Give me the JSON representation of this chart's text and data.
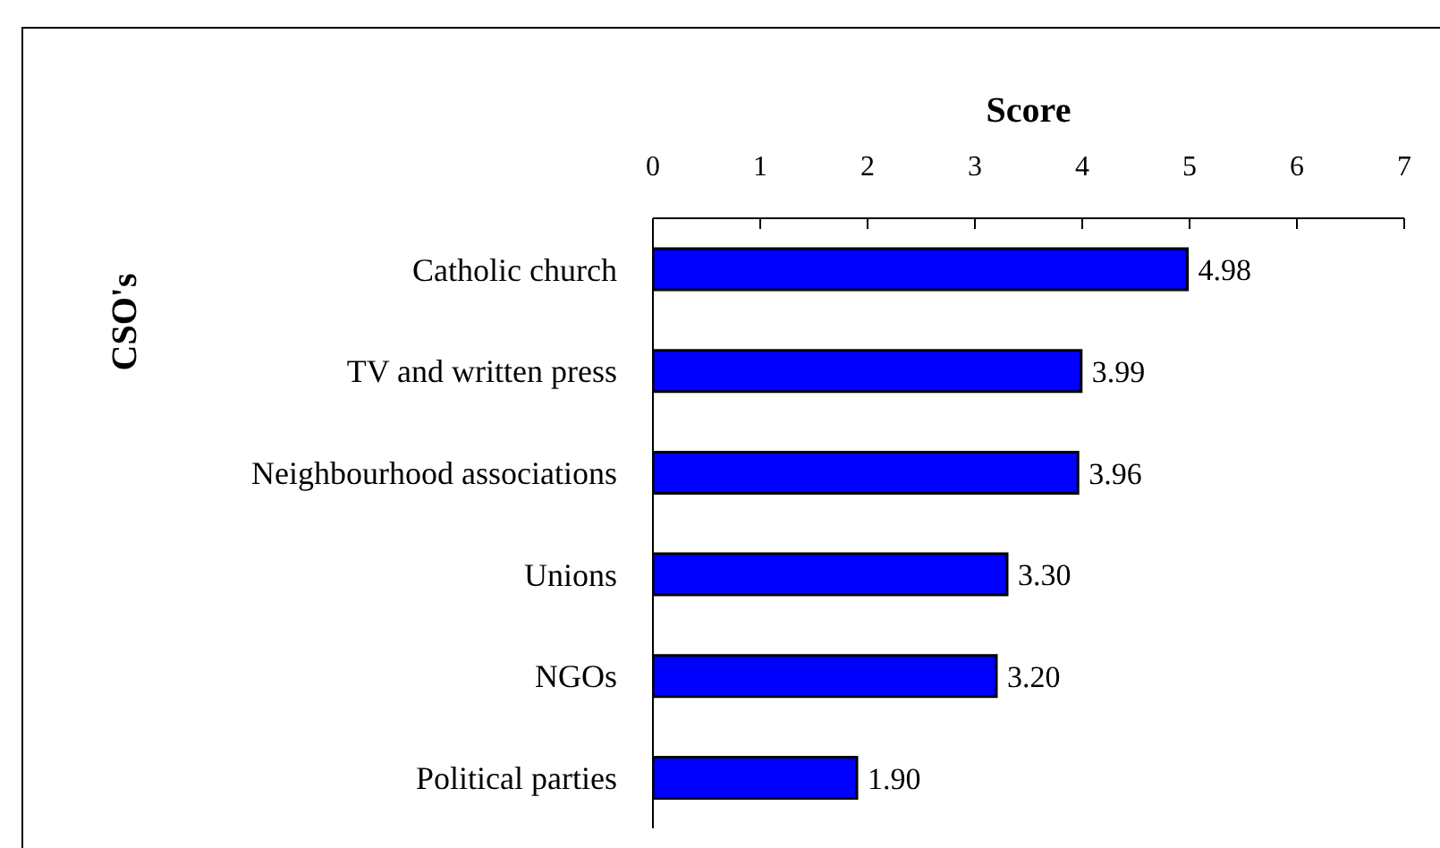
{
  "chart_data": {
    "type": "bar",
    "orientation": "horizontal",
    "xlabel": "Score",
    "ylabel": "CSO's",
    "categories": [
      "Catholic church",
      "TV and written press",
      "Neighbourhood associations",
      "Unions",
      "NGOs",
      "Political parties"
    ],
    "values": [
      4.98,
      3.99,
      3.96,
      3.3,
      3.2,
      1.9
    ],
    "color": "#0000ff",
    "value_labels": [
      "4.98",
      "3.99",
      "3.96",
      "3.30",
      "3.20",
      "1.90"
    ],
    "xlim": [
      0,
      7
    ],
    "xticks": [
      0,
      1,
      2,
      3,
      4,
      5,
      6,
      7
    ]
  }
}
